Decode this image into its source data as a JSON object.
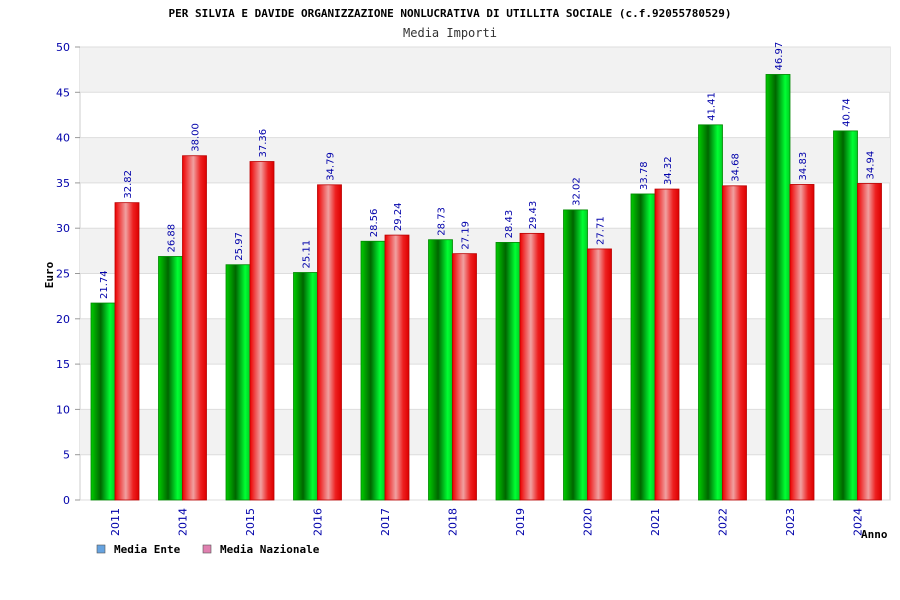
{
  "chart_data": {
    "type": "bar",
    "title": "PER SILVIA E DAVIDE ORGANIZZAZIONE NONLUCRATIVA DI UTILLITA SOCIALE (c.f.92055780529)",
    "subtitle": "Media Importi",
    "xlabel": "Anno",
    "ylabel": "Euro",
    "ylim": [
      0,
      50
    ],
    "yticks": [
      "0",
      "5",
      "10",
      "15",
      "20",
      "25",
      "30",
      "35",
      "40",
      "45",
      "50"
    ],
    "grid": true,
    "legend_position": "bottom-left",
    "categories": [
      "2011",
      "2014",
      "2015",
      "2016",
      "2017",
      "2018",
      "2019",
      "2020",
      "2021",
      "2022",
      "2023",
      "2024"
    ],
    "series": [
      {
        "name": "Media Ente",
        "color": "#00aa00",
        "legend_color": "#66a3e0",
        "values": [
          21.74,
          26.88,
          25.97,
          25.11,
          28.56,
          28.73,
          28.43,
          32.02,
          33.78,
          41.41,
          46.97,
          40.74
        ],
        "labels": [
          "21.74",
          "26.88",
          "25.97",
          "25.11",
          "28.56",
          "28.73",
          "28.43",
          "32.02",
          "33.78",
          "41.41",
          "46.97",
          "40.74"
        ]
      },
      {
        "name": "Media Nazionale",
        "color": "#ee0000",
        "legend_color": "#e080b0",
        "values": [
          32.82,
          38.0,
          37.36,
          34.79,
          29.24,
          27.19,
          29.43,
          27.71,
          34.32,
          34.68,
          34.83,
          34.94
        ],
        "labels": [
          "32.82",
          "38.00",
          "37.36",
          "34.79",
          "29.24",
          "27.19",
          "29.43",
          "27.71",
          "34.32",
          "34.68",
          "34.83",
          "34.94"
        ]
      }
    ]
  }
}
